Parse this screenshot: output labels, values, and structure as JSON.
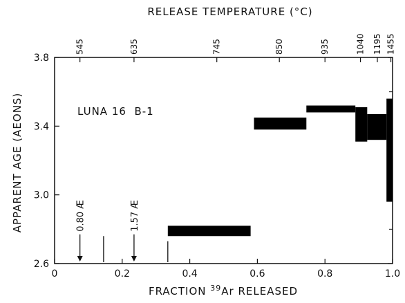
{
  "chart_data": {
    "type": "step",
    "title": "",
    "annotation": "LUNA 16  B-1",
    "xlabel_prefix": "FRACTION ",
    "xlabel_sup": "39",
    "xlabel_suffix": "Ar RELEASED",
    "ylabel": "APPARENT AGE (AEONS)",
    "top_axis_label": "RELEASE TEMPERATURE (°C)",
    "xlim": [
      0,
      1.0
    ],
    "ylim": [
      2.6,
      3.8
    ],
    "x_ticks": [
      0,
      0.2,
      0.4,
      0.6,
      0.8,
      1.0
    ],
    "x_tick_labels": [
      "0",
      "0.2",
      "0.4",
      "0.6",
      "0.8",
      "1.0"
    ],
    "y_ticks": [
      2.6,
      3.0,
      3.4,
      3.8
    ],
    "y_tick_labels": [
      "2.6",
      "3.0",
      "3.4",
      "3.8"
    ],
    "top_ticks": [
      {
        "x": 0.075,
        "label": "545"
      },
      {
        "x": 0.235,
        "label": "635"
      },
      {
        "x": 0.48,
        "label": "745"
      },
      {
        "x": 0.665,
        "label": "850"
      },
      {
        "x": 0.8,
        "label": "935"
      },
      {
        "x": 0.905,
        "label": "1040"
      },
      {
        "x": 0.955,
        "label": "1195"
      },
      {
        "x": 0.995,
        "label": "1455"
      }
    ],
    "steps": [
      {
        "x0": 0.335,
        "x1": 0.58,
        "y_low": 2.76,
        "y_high": 2.82
      },
      {
        "x0": 0.59,
        "x1": 0.745,
        "y_low": 3.38,
        "y_high": 3.45
      },
      {
        "x0": 0.745,
        "x1": 0.89,
        "y_low": 3.48,
        "y_high": 3.52
      },
      {
        "x0": 0.89,
        "x1": 0.925,
        "y_low": 3.31,
        "y_high": 3.51
      },
      {
        "x0": 0.925,
        "x1": 0.982,
        "y_low": 3.32,
        "y_high": 3.47
      },
      {
        "x0": 0.982,
        "x1": 1.0,
        "y_low": 2.96,
        "y_high": 3.56
      }
    ],
    "markers": [
      {
        "x": 0.075,
        "label": "0.80 Æ"
      },
      {
        "x": 0.235,
        "label": "1.57 Æ"
      }
    ],
    "small_lines": [
      {
        "x": 0.145,
        "y_top": 2.76
      },
      {
        "x": 0.335,
        "y_top": 2.73
      }
    ],
    "grid": false
  }
}
